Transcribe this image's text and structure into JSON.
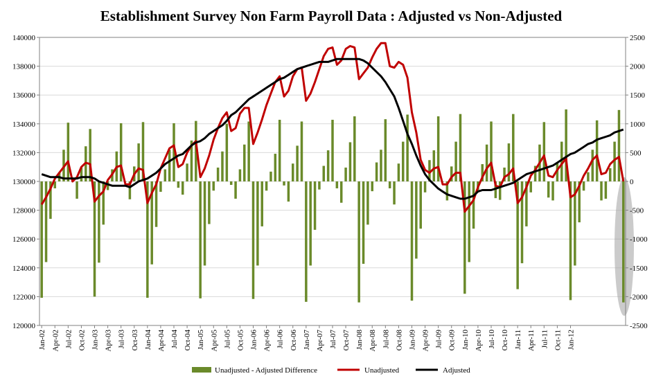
{
  "chart_data": {
    "type": "bar+line",
    "title": "Establishment Survey Non Farm Payroll Data : Adjusted vs Non-Adjusted",
    "colors": {
      "bars": "#6a8a2a",
      "unadjusted": "#c00000",
      "adjusted": "#000000",
      "highlight": "#a0a0a0",
      "grid": "#d9d9d9"
    },
    "y_left": {
      "min": 120000,
      "max": 140000,
      "ticks": [
        "120000",
        "122000",
        "124000",
        "126000",
        "128000",
        "130000",
        "132000",
        "134000",
        "136000",
        "138000",
        "140000"
      ]
    },
    "y_right": {
      "min": -2500,
      "max": 2500,
      "ticks": [
        "-2500",
        "-2000",
        "-1500",
        "-1000",
        "-500",
        "0",
        "500",
        "1000",
        "1500",
        "2000",
        "2500"
      ]
    },
    "x_tick_labels": [
      "Jan-02",
      "Apr-02",
      "Jul-02",
      "Oct-02",
      "Jan-03",
      "Apr-03",
      "Jul-03",
      "Oct-03",
      "Jan-04",
      "Apr-04",
      "Jul-04",
      "Oct-04",
      "Jan-05",
      "Apr-05",
      "Jul-05",
      "Oct-05",
      "Jan-06",
      "Apr-06",
      "Jul-06",
      "Oct-06",
      "Jan-07",
      "Apr-07",
      "Jul-07",
      "Oct-07",
      "Jan-08",
      "Apr-08",
      "Jul-08",
      "Oct-08",
      "Jan-09",
      "Apr-09",
      "Jul-09",
      "Oct-09",
      "Jan-10",
      "Apr-10",
      "Jul-10",
      "Oct-10",
      "Jan-11",
      "Apr-11",
      "Jul-11",
      "Oct-11",
      "Jan-12"
    ],
    "start_month": "Jan-02",
    "series": [
      {
        "name": "Unadjusted - Adjusted Difference",
        "axis": "right",
        "kind": "bar",
        "values": [
          -2020,
          -1400,
          -650,
          -120,
          160,
          550,
          1020,
          0,
          -300,
          240,
          610,
          910,
          -2000,
          -1410,
          -750,
          -150,
          210,
          520,
          1010,
          1,
          -310,
          260,
          660,
          1030,
          -2020,
          -1440,
          -790,
          -180,
          210,
          550,
          1010,
          -110,
          -230,
          310,
          710,
          1050,
          -2030,
          -1460,
          -740,
          -160,
          240,
          520,
          1000,
          -60,
          -300,
          210,
          640,
          1040,
          -2040,
          -1460,
          -780,
          -160,
          170,
          480,
          1070,
          -70,
          -350,
          310,
          620,
          1040,
          -2090,
          -1460,
          -840,
          -140,
          270,
          540,
          1070,
          -120,
          -370,
          240,
          680,
          1130,
          -2100,
          -1430,
          -750,
          -170,
          330,
          550,
          1080,
          -120,
          -400,
          310,
          690,
          1160,
          -2070,
          -1340,
          -820,
          -190,
          370,
          540,
          1130,
          0,
          -330,
          260,
          690,
          1170,
          -1950,
          -1400,
          -820,
          -150,
          300,
          640,
          1040,
          -290,
          -320,
          240,
          660,
          1170,
          -1870,
          -1420,
          -780,
          -190,
          270,
          640,
          1030,
          -280,
          -330,
          310,
          690,
          1250,
          -2060,
          -1460,
          -710,
          -160,
          160,
          550,
          1060,
          -330,
          -300,
          230,
          690,
          1240,
          -2100
        ],
        "spike_at_end": -2100
      },
      {
        "name": "Unadjusted",
        "axis": "left",
        "kind": "line",
        "color": "#c00000",
        "values": [
          128400,
          128900,
          129500,
          130200,
          130600,
          131000,
          131400,
          130000,
          130300,
          131000,
          131300,
          131200,
          128600,
          129000,
          129300,
          130100,
          130500,
          131000,
          131100,
          129800,
          129800,
          130500,
          130900,
          130800,
          128500,
          129200,
          129800,
          130900,
          131600,
          132300,
          132500,
          131000,
          131200,
          132000,
          132500,
          132800,
          130300,
          130900,
          131800,
          132900,
          133700,
          134400,
          134800,
          133500,
          133700,
          134700,
          135100,
          135100,
          132600,
          133400,
          134300,
          135300,
          136100,
          136900,
          137300,
          135900,
          136300,
          137300,
          137800,
          137900,
          135600,
          136100,
          136900,
          137800,
          138700,
          139200,
          139300,
          138100,
          138400,
          139200,
          139400,
          139300,
          137100,
          137500,
          137900,
          138600,
          139200,
          139600,
          139600,
          138000,
          137900,
          138300,
          138100,
          137200,
          134800,
          133400,
          131500,
          130800,
          130600,
          130900,
          131000,
          129800,
          129800,
          130300,
          130600,
          130600,
          127900,
          128300,
          128700,
          129600,
          130300,
          130900,
          131300,
          129700,
          129600,
          130300,
          130500,
          130900,
          128500,
          128900,
          129600,
          130400,
          130800,
          131300,
          131800,
          130400,
          130300,
          130800,
          131200,
          131600,
          128900,
          129100,
          129700,
          130400,
          130900,
          131500,
          131800,
          130500,
          130600,
          131200,
          131500,
          131700,
          130000
        ],
        "color_note": "Unadjusted line"
      },
      {
        "name": "Adjusted",
        "axis": "left",
        "kind": "line",
        "color": "#000000",
        "values": [
          130500,
          130400,
          130300,
          130300,
          130300,
          130200,
          130200,
          130200,
          130200,
          130300,
          130300,
          130300,
          130200,
          130000,
          129900,
          129800,
          129700,
          129700,
          129700,
          129700,
          129600,
          129800,
          130000,
          130100,
          130200,
          130400,
          130600,
          130900,
          131200,
          131400,
          131600,
          131800,
          131900,
          132200,
          132500,
          132700,
          132800,
          133000,
          133300,
          133500,
          133700,
          133900,
          134200,
          134600,
          134800,
          135100,
          135400,
          135700,
          135900,
          136100,
          136300,
          136500,
          136700,
          136900,
          137100,
          137200,
          137400,
          137600,
          137800,
          137900,
          138000,
          138100,
          138200,
          138300,
          138300,
          138300,
          138400,
          138500,
          138500,
          138500,
          138500,
          138500,
          138500,
          138400,
          138200,
          137900,
          137600,
          137300,
          136900,
          136400,
          135900,
          135100,
          134200,
          133300,
          132600,
          131800,
          131100,
          130500,
          130100,
          129800,
          129500,
          129300,
          129100,
          129000,
          128900,
          128800,
          128800,
          128900,
          129000,
          129300,
          129400,
          129400,
          129400,
          129500,
          129600,
          129700,
          129800,
          129900,
          130100,
          130300,
          130500,
          130600,
          130700,
          130800,
          130900,
          131000,
          131100,
          131300,
          131500,
          131700,
          131900,
          132000,
          132200,
          132400,
          132600,
          132700,
          132900,
          133000,
          133100,
          133200,
          133400,
          133500,
          133600
        ]
      }
    ],
    "legend": [
      "Unadjusted - Adjusted Difference",
      "Unadjusted",
      "Adjusted"
    ]
  }
}
